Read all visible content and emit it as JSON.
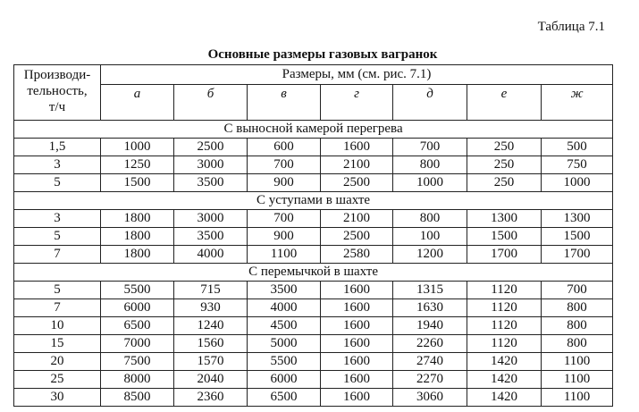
{
  "table_label": "Таблица 7.1",
  "title": "Основные размеры газовых вагранок",
  "header": {
    "first_col": [
      "Производи-",
      "тельность,",
      "т/ч"
    ],
    "group": "Размеры, мм (см. рис. 7.1)",
    "letters": [
      "а",
      "б",
      "в",
      "г",
      "д",
      "е",
      "ж"
    ]
  },
  "sections": [
    {
      "title": "С выносной камерой перегрева",
      "rows": [
        [
          "1,5",
          "1000",
          "2500",
          "600",
          "1600",
          "700",
          "250",
          "500"
        ],
        [
          "3",
          "1250",
          "3000",
          "700",
          "2100",
          "800",
          "250",
          "750"
        ],
        [
          "5",
          "1500",
          "3500",
          "900",
          "2500",
          "1000",
          "250",
          "1000"
        ]
      ]
    },
    {
      "title": "С уступами в шахте",
      "rows": [
        [
          "3",
          "1800",
          "3000",
          "700",
          "2100",
          "800",
          "1300",
          "1300"
        ],
        [
          "5",
          "1800",
          "3500",
          "900",
          "2500",
          "100",
          "1500",
          "1500"
        ],
        [
          "7",
          "1800",
          "4000",
          "1100",
          "2580",
          "1200",
          "1700",
          "1700"
        ]
      ]
    },
    {
      "title": "С перемычкой в шахте",
      "rows": [
        [
          "5",
          "5500",
          "715",
          "3500",
          "1600",
          "1315",
          "1120",
          "700"
        ],
        [
          "7",
          "6000",
          "930",
          "4000",
          "1600",
          "1630",
          "1120",
          "800"
        ],
        [
          "10",
          "6500",
          "1240",
          "4500",
          "1600",
          "1940",
          "1120",
          "800"
        ],
        [
          "15",
          "7000",
          "1560",
          "5000",
          "1600",
          "2260",
          "1120",
          "800"
        ],
        [
          "20",
          "7500",
          "1570",
          "5500",
          "1600",
          "2740",
          "1420",
          "1100"
        ],
        [
          "25",
          "8000",
          "2040",
          "6000",
          "1600",
          "2270",
          "1420",
          "1100"
        ],
        [
          "30",
          "8500",
          "2360",
          "6500",
          "1600",
          "3060",
          "1420",
          "1100"
        ]
      ]
    }
  ]
}
